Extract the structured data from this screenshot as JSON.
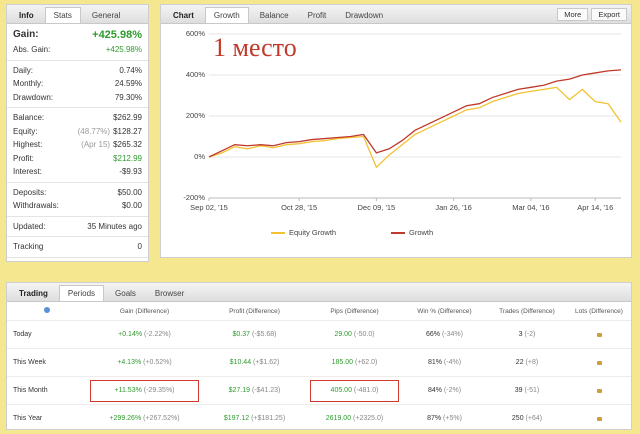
{
  "info": {
    "tabs": [
      "Info",
      "Stats",
      "General"
    ],
    "groups": [
      [
        {
          "label": "Gain:",
          "value": "+425.98%",
          "color": "#2e9b2e",
          "big": true
        },
        {
          "label": "Abs. Gain:",
          "value": "+425.98%",
          "color": "#2e9b2e"
        }
      ],
      [
        {
          "label": "Daily:",
          "value": "0.74%"
        },
        {
          "label": "Monthly:",
          "value": "24.59%"
        },
        {
          "label": "Drawdown:",
          "value": "79.30%"
        }
      ],
      [
        {
          "label": "Balance:",
          "value": "$262.99"
        },
        {
          "label": "Equity:",
          "note": "(48.77%)",
          "value": "$128.27"
        },
        {
          "label": "Highest:",
          "note": "(Apr 15)",
          "value": "$265.32"
        },
        {
          "label": "Profit:",
          "value": "$212.99",
          "color": "#2e9b2e"
        },
        {
          "label": "Interest:",
          "value": "-$9.93"
        }
      ],
      [
        {
          "label": "Deposits:",
          "value": "$50.00"
        },
        {
          "label": "Withdrawals:",
          "value": "$0.00"
        }
      ],
      [
        {
          "label": "Updated:",
          "value": "35 Minutes ago"
        }
      ],
      [
        {
          "label": "Tracking",
          "value": "0"
        }
      ]
    ]
  },
  "chart_panel": {
    "tabs": [
      "Chart",
      "Growth",
      "Balance",
      "Profit",
      "Drawdown"
    ],
    "buttons": [
      "More",
      "Export"
    ]
  },
  "chart_data": {
    "type": "line",
    "annotation": "1 место",
    "categories": [
      "Sep 02, '15",
      null,
      null,
      null,
      null,
      null,
      null,
      "Oct 28, '15",
      null,
      null,
      null,
      null,
      null,
      "Dec 09, '15",
      null,
      null,
      null,
      null,
      null,
      "Jan 26, '16",
      null,
      null,
      null,
      null,
      null,
      "Mar 04, '16",
      null,
      null,
      null,
      null,
      "Apr 14, '16",
      null,
      null
    ],
    "series": [
      {
        "name": "Equity Growth",
        "color": "#f2c232",
        "values": [
          0,
          20,
          50,
          40,
          55,
          45,
          60,
          65,
          75,
          80,
          90,
          95,
          100,
          -50,
          10,
          60,
          110,
          140,
          170,
          200,
          230,
          240,
          270,
          290,
          310,
          320,
          330,
          340,
          280,
          330,
          270,
          260,
          170
        ]
      },
      {
        "name": "Growth",
        "color": "#c0392b",
        "values": [
          0,
          30,
          60,
          55,
          60,
          55,
          70,
          75,
          85,
          90,
          95,
          100,
          110,
          20,
          40,
          80,
          130,
          160,
          190,
          220,
          250,
          260,
          290,
          310,
          330,
          340,
          350,
          370,
          380,
          400,
          410,
          420,
          425
        ]
      }
    ],
    "ylim": [
      -200,
      600
    ],
    "yticks": [
      {
        "value": -200,
        "label": "-200%"
      },
      {
        "value": 0,
        "label": "0%"
      },
      {
        "value": 200,
        "label": "200%"
      },
      {
        "value": 400,
        "label": "400%"
      },
      {
        "value": 600,
        "label": "600%"
      }
    ],
    "grid": true
  },
  "trading": {
    "tabs": [
      "Trading",
      "Periods",
      "Goals",
      "Browser"
    ],
    "columns": [
      {
        "label": "Gain (Difference)",
        "color": "#2e9b2e"
      },
      {
        "label": "Profit (Difference)",
        "color": "#2e9b2e"
      },
      {
        "label": "Pips (Difference)",
        "color": "#2e9b2e"
      },
      {
        "label": "Win % (Difference)",
        "color": "#333"
      },
      {
        "label": "Trades (Difference)",
        "color": "#333"
      },
      {
        "label": "Lots (Difference)",
        "color": "#333"
      }
    ],
    "rows": [
      {
        "period": "Today",
        "cells": [
          [
            "+0.14%",
            "(-2.22%)"
          ],
          [
            "$0.37",
            "(-$5.68)"
          ],
          [
            "29.00",
            "(-50.0)"
          ],
          [
            "66%",
            "(-34%)"
          ],
          [
            "3",
            "(-2)"
          ]
        ]
      },
      {
        "period": "This Week",
        "cells": [
          [
            "+4.13%",
            "(+0.52%)"
          ],
          [
            "$10.44",
            "(+$1.62)"
          ],
          [
            "185.00",
            "(+62.0)"
          ],
          [
            "81%",
            "(-4%)"
          ],
          [
            "22",
            "(+8)"
          ]
        ]
      },
      {
        "period": "This Month",
        "cells": [
          [
            "+11.53%",
            "(-29.35%)"
          ],
          [
            "$27.19",
            "(-$41.23)"
          ],
          [
            "405.00",
            "(-481.0)"
          ],
          [
            "84%",
            "(-2%)"
          ],
          [
            "39",
            "(-51)"
          ]
        ]
      },
      {
        "period": "This Year",
        "cells": [
          [
            "+299.26%",
            "(+267.52%)"
          ],
          [
            "$197.12",
            "(+$181.25)"
          ],
          [
            "2619.00",
            "(+2325.0)"
          ],
          [
            "87%",
            "(+5%)"
          ],
          [
            "250",
            "(+64)"
          ]
        ]
      }
    ]
  }
}
